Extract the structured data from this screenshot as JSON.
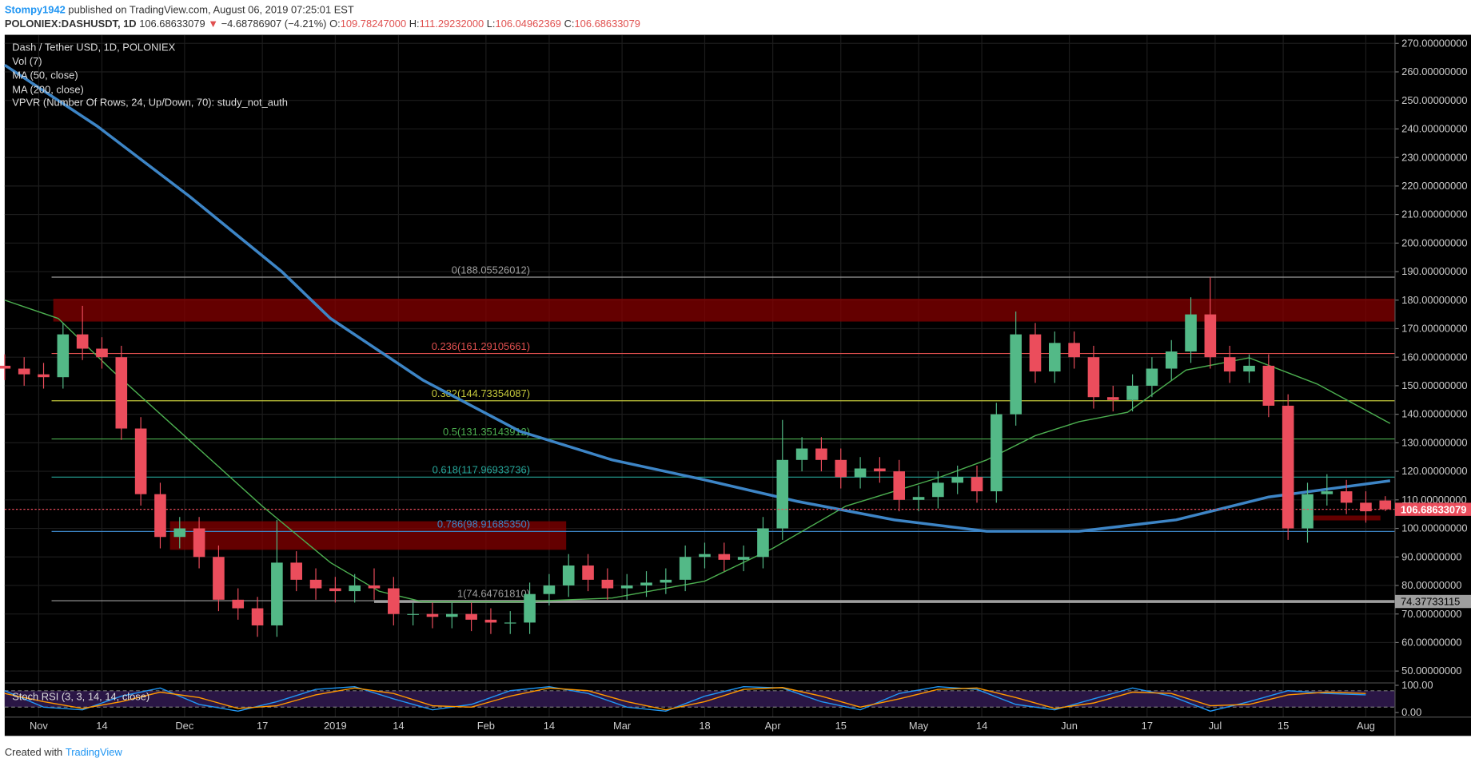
{
  "header": {
    "author": "Stompy1942",
    "published": "published on TradingView.com, August 06, 2019 07:25:01 EST",
    "symbol": "POLONIEX:DASHUSDT, 1D",
    "price": "106.68633079",
    "arrow": "▼",
    "change": "−4.68786907 (−4.21%)",
    "o_label": "O:",
    "o": "109.78247000",
    "h_label": "H:",
    "h": "111.29232000",
    "l_label": "L:",
    "l": "106.04962369",
    "c_label": "C:",
    "c": "106.68633079"
  },
  "footer": {
    "created": "Created with",
    "brand": "TradingView"
  },
  "chart_data": {
    "type": "candlestick",
    "title": "Dash / Tether USD, 1D, POLONIEX",
    "studies": [
      "Vol (7)",
      "VPVR (Number Of Rows, 24, Up/Down, 70): study_not_auth"
    ],
    "up_color": "#53b987",
    "down_color": "#eb4d5c",
    "x": [
      0,
      4,
      8,
      12,
      16,
      20,
      24,
      28,
      32,
      36,
      40,
      44,
      48,
      52,
      56,
      60,
      64,
      68,
      72,
      76,
      80,
      84,
      88,
      92,
      96,
      100,
      104,
      108,
      112,
      116,
      120,
      124,
      128,
      132,
      136,
      140,
      144,
      148,
      152,
      156,
      160,
      164,
      168,
      172,
      176,
      180,
      184,
      188,
      192,
      196,
      200,
      204,
      208,
      212,
      216,
      220,
      224,
      228,
      232,
      236,
      240,
      244,
      248,
      252,
      256,
      260,
      264,
      268,
      272,
      276,
      280,
      284
    ],
    "open": [
      157,
      156,
      154,
      153,
      168,
      163,
      160,
      135,
      112,
      97,
      100,
      90,
      75,
      72,
      66,
      88,
      82,
      79,
      78,
      80,
      79,
      70,
      70,
      69,
      70,
      68,
      67,
      67,
      77,
      80,
      87,
      82,
      79,
      80,
      81,
      82,
      90,
      91,
      89,
      90,
      100,
      124,
      128,
      124,
      118,
      121,
      120,
      110,
      111,
      116,
      118,
      113,
      140,
      168,
      155,
      165,
      160,
      146,
      145,
      150,
      156,
      162,
      175,
      160,
      155,
      157,
      143,
      100,
      112,
      113,
      109,
      109.78247
    ],
    "high": [
      161,
      160,
      158,
      172,
      178,
      167,
      164,
      139,
      116,
      104,
      104,
      94,
      79,
      76,
      103,
      92,
      86,
      83,
      84,
      86,
      83,
      74,
      74,
      74,
      74,
      72,
      71,
      81,
      84,
      91,
      91,
      86,
      84,
      85,
      86,
      94,
      95,
      95,
      94,
      104,
      138,
      132,
      132,
      128,
      125,
      125,
      124,
      115,
      120,
      122,
      122,
      144,
      176,
      172,
      169,
      169,
      164,
      150,
      154,
      160,
      166,
      181,
      188.05526012,
      164,
      161,
      161,
      147,
      116,
      119,
      117,
      113,
      111.29232
    ],
    "low": [
      152,
      150,
      149,
      149,
      159,
      156,
      131,
      108,
      93,
      93,
      86,
      71,
      68,
      62,
      62,
      78,
      75,
      74,
      74,
      75,
      66,
      66,
      65,
      65,
      64,
      63,
      63,
      63,
      73,
      76,
      78,
      75,
      75,
      76,
      77,
      78,
      86,
      85,
      85,
      86,
      96,
      120,
      120,
      114,
      114,
      116,
      106,
      106,
      107,
      112,
      109,
      109,
      136,
      151,
      151,
      156,
      142,
      141,
      141,
      146,
      152,
      158,
      156,
      151,
      151,
      139,
      96,
      95,
      108,
      105,
      102,
      106.04962369
    ],
    "close": [
      156,
      154,
      153,
      168,
      163,
      160,
      135,
      112,
      97,
      100,
      90,
      75,
      72,
      66,
      88,
      82,
      79,
      78,
      80,
      79,
      70,
      70,
      69,
      70,
      68,
      67,
      67,
      77,
      80,
      87,
      82,
      79,
      80,
      81,
      82,
      90,
      91,
      89,
      90,
      100,
      124,
      128,
      124,
      118,
      121,
      120,
      110,
      111,
      116,
      118,
      113,
      140,
      168,
      155,
      165,
      160,
      146,
      145,
      150,
      156,
      162,
      175,
      160,
      155,
      157,
      143,
      100,
      112,
      113,
      109,
      106,
      106.68633079
    ],
    "lines": [
      {
        "name": "MA (50, close)",
        "color": "#4caf50",
        "width": 1.2,
        "x": [
          0,
          11,
          22,
          38,
          53,
          67,
          77,
          86,
          106,
          125,
          144,
          158,
          173,
          192,
          202,
          212,
          221,
          231,
          243,
          256,
          270,
          285
        ],
        "values": [
          180,
          173.6,
          155.5,
          130.9,
          107.8,
          88,
          78,
          74.3,
          74.3,
          75.6,
          81.5,
          93,
          107.8,
          117.7,
          124,
          132.5,
          137.4,
          140.7,
          155.5,
          159.8,
          150.6,
          136.8
        ]
      },
      {
        "name": "MA (200, close)",
        "color": "#3d85c6",
        "width": 3,
        "x": [
          0,
          19,
          38,
          57,
          67,
          86,
          106,
          125,
          144,
          163,
          183,
          202,
          221,
          241,
          260,
          285
        ],
        "values": [
          262.4,
          241,
          216.4,
          190,
          173.6,
          152,
          134,
          124,
          117,
          109.5,
          103,
          99,
          99,
          103,
          111,
          116.7
        ]
      }
    ],
    "fib": [
      {
        "value": 188.05526012,
        "label": "0(188.05526012)",
        "color": "#9e9e9e"
      },
      {
        "value": 161.29105661,
        "label": "0.236(161.29105661)",
        "color": "#e0504f"
      },
      {
        "value": 144.73354087,
        "label": "0.382(144.73354087)",
        "color": "#c5c93c"
      },
      {
        "value": 131.35143912,
        "label": "0.5(131.35143912)",
        "color": "#4caf50"
      },
      {
        "value": 117.96933736,
        "label": "0.618(117.96933736)",
        "color": "#26a69a"
      },
      {
        "value": 98.9168535,
        "label": "0.786(98.91685350)",
        "color": "#3d85c6"
      },
      {
        "value": 74.6476181,
        "label": "1(74.64761810)",
        "color": "#9e9e9e"
      }
    ],
    "zones": [
      {
        "from": 10,
        "to": 286,
        "top": 180.5,
        "bottom": 172.5
      },
      {
        "from": 34,
        "to": 115.5,
        "top": 102.5,
        "bottom": 92.5
      },
      {
        "from": 268,
        "to": 283,
        "top": 104.5,
        "bottom": 102.8
      }
    ],
    "support": {
      "value": 74.37733115,
      "from": 76
    },
    "last_price": 106.68633079,
    "xlim": [
      0,
      286
    ],
    "ylim": [
      46,
      273
    ],
    "xticks": [
      {
        "value": 7,
        "label": "Nov"
      },
      {
        "value": 20,
        "label": "14"
      },
      {
        "value": 37,
        "label": "Dec"
      },
      {
        "value": 53,
        "label": "17"
      },
      {
        "value": 68,
        "label": "2019"
      },
      {
        "value": 81,
        "label": "14"
      },
      {
        "value": 99,
        "label": "Feb"
      },
      {
        "value": 112,
        "label": "14"
      },
      {
        "value": 127,
        "label": "Mar"
      },
      {
        "value": 144,
        "label": "18"
      },
      {
        "value": 158,
        "label": "Apr"
      },
      {
        "value": 172,
        "label": "15"
      },
      {
        "value": 188,
        "label": "May"
      },
      {
        "value": 201,
        "label": "14"
      },
      {
        "value": 219,
        "label": "Jun"
      },
      {
        "value": 235,
        "label": "17"
      },
      {
        "value": 249,
        "label": "Jul"
      },
      {
        "value": 263,
        "label": "15"
      },
      {
        "value": 280,
        "label": "Aug"
      }
    ],
    "yticks": [
      {
        "value": 270,
        "label": "270.00000000"
      },
      {
        "value": 260,
        "label": "260.00000000"
      },
      {
        "value": 250,
        "label": "250.00000000"
      },
      {
        "value": 240,
        "label": "240.00000000"
      },
      {
        "value": 230,
        "label": "230.00000000"
      },
      {
        "value": 220,
        "label": "220.00000000"
      },
      {
        "value": 210,
        "label": "210.00000000"
      },
      {
        "value": 200,
        "label": "200.00000000"
      },
      {
        "value": 190,
        "label": "190.00000000"
      },
      {
        "value": 180,
        "label": "180.00000000"
      },
      {
        "value": 170,
        "label": "170.00000000"
      },
      {
        "value": 160,
        "label": "160.00000000"
      },
      {
        "value": 150,
        "label": "150.00000000"
      },
      {
        "value": 140,
        "label": "140.00000000"
      },
      {
        "value": 130,
        "label": "130.00000000"
      },
      {
        "value": 120,
        "label": "120.00000000"
      },
      {
        "value": 110,
        "label": "110.00000000"
      },
      {
        "value": 100,
        "label": "100.00000000"
      },
      {
        "value": 90,
        "label": "90.00000000"
      },
      {
        "value": 80,
        "label": "80.00000000"
      },
      {
        "value": 70,
        "label": "70.00000000"
      },
      {
        "value": 60,
        "label": "60.00000000"
      },
      {
        "value": 50,
        "label": "50.00000000"
      }
    ],
    "stoch": {
      "name": "Stoch RSI (3, 3, 14, 14, close)",
      "ylim": [
        -17,
        107
      ],
      "yticks": [
        {
          "value": 100,
          "label": "100.00"
        },
        {
          "value": 0,
          "label": "0.00"
        }
      ],
      "bands": [
        80,
        20
      ],
      "x": [
        0,
        8,
        16,
        24,
        32,
        40,
        48,
        56,
        64,
        72,
        80,
        88,
        96,
        104,
        112,
        120,
        128,
        136,
        144,
        152,
        160,
        168,
        176,
        184,
        192,
        200,
        208,
        216,
        224,
        232,
        240,
        248,
        256,
        264,
        272,
        280
      ],
      "series": [
        {
          "color": "#2196f3",
          "values": [
            80,
            20,
            10,
            60,
            90,
            30,
            5,
            40,
            85,
            95,
            50,
            10,
            30,
            80,
            95,
            70,
            20,
            5,
            60,
            95,
            90,
            40,
            10,
            70,
            95,
            85,
            30,
            10,
            50,
            90,
            60,
            5,
            40,
            80,
            70,
            65
          ]
        },
        {
          "color": "#ff9800",
          "values": [
            70,
            40,
            15,
            40,
            75,
            55,
            15,
            25,
            65,
            90,
            70,
            25,
            20,
            60,
            90,
            80,
            40,
            10,
            40,
            85,
            92,
            60,
            20,
            50,
            85,
            90,
            55,
            15,
            35,
            75,
            70,
            25,
            30,
            65,
            75,
            70
          ]
        }
      ]
    }
  }
}
